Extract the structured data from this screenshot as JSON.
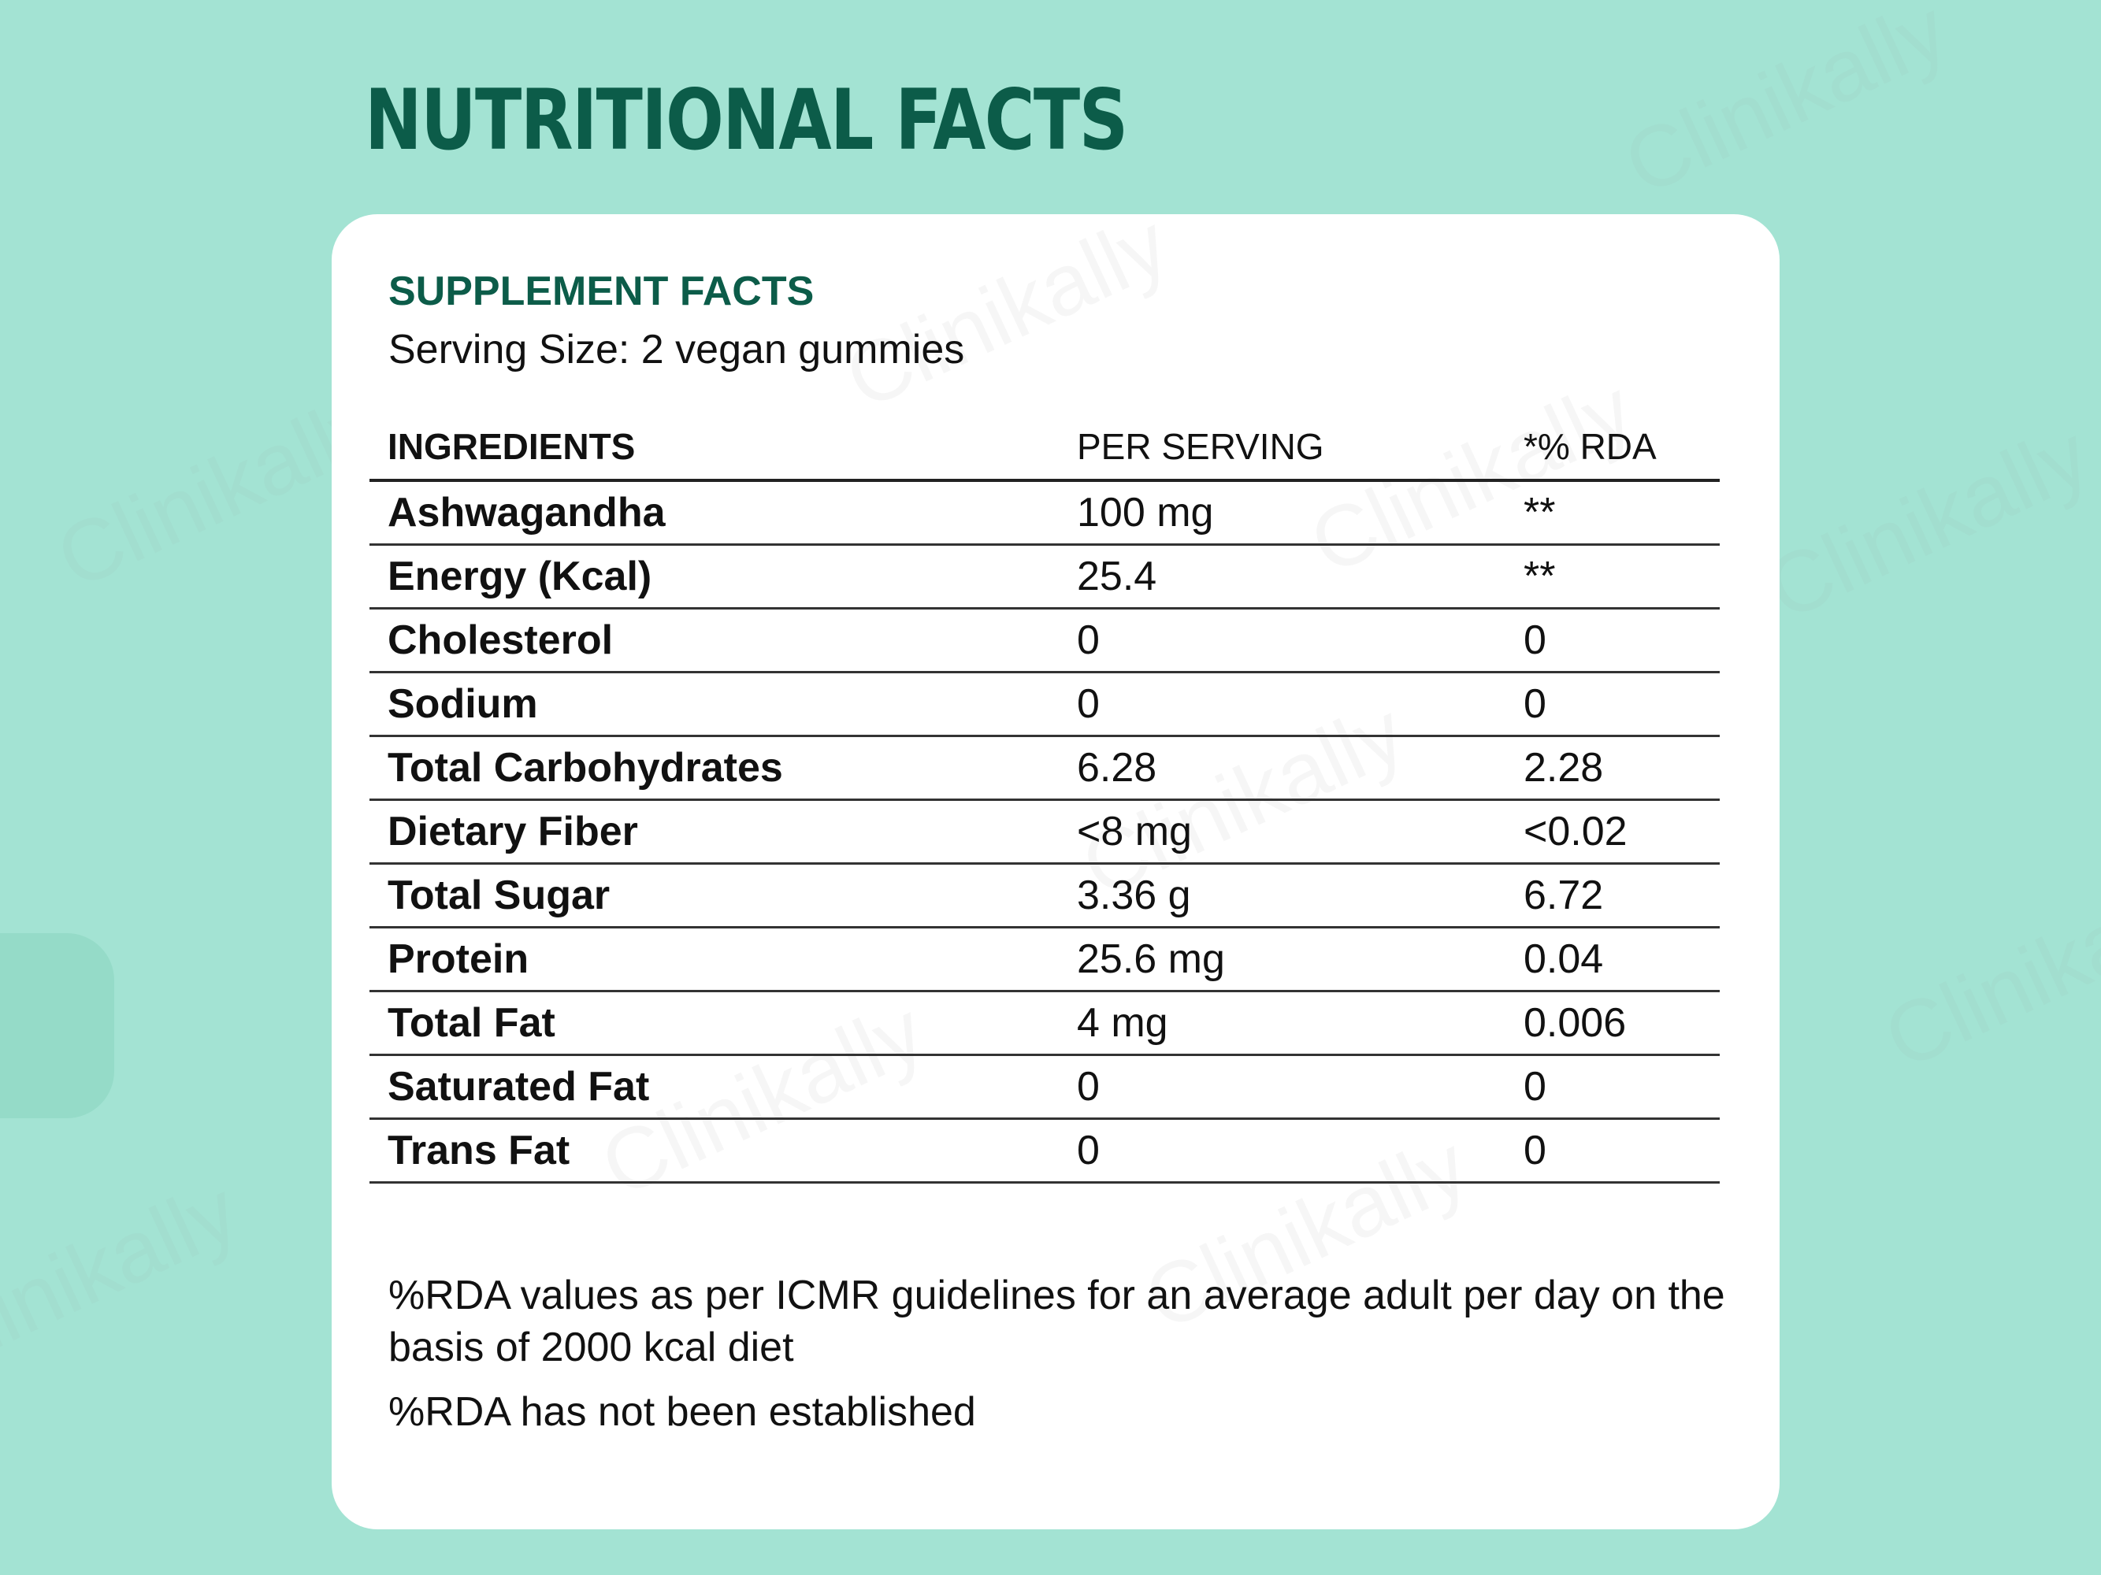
{
  "heading": "NUTRITIONAL FACTS",
  "watermark_text": "Clinikally",
  "card": {
    "title": "SUPPLEMENT FACTS",
    "serving_size": "Serving Size: 2 vegan gummies",
    "table": {
      "headers": {
        "ingredient": "INGREDIENTS",
        "per_serving": "PER SERVING",
        "rda": "*% RDA"
      },
      "rows": [
        {
          "ingredient": "Ashwagandha",
          "per_serving": "100 mg",
          "rda": "**"
        },
        {
          "ingredient": "Energy (Kcal)",
          "per_serving": "25.4",
          "rda": "**"
        },
        {
          "ingredient": "Cholesterol",
          "per_serving": "0",
          "rda": "0"
        },
        {
          "ingredient": "Sodium",
          "per_serving": "0",
          "rda": "0"
        },
        {
          "ingredient": "Total Carbohydrates",
          "per_serving": "6.28",
          "rda": "2.28"
        },
        {
          "ingredient": "Dietary Fiber",
          "per_serving": "<8 mg",
          "rda": "<0.02"
        },
        {
          "ingredient": "Total Sugar",
          "per_serving": "3.36 g",
          "rda": "6.72"
        },
        {
          "ingredient": "Protein",
          "per_serving": "25.6 mg",
          "rda": "0.04"
        },
        {
          "ingredient": "Total Fat",
          "per_serving": "4 mg",
          "rda": "0.006"
        },
        {
          "ingredient": "Saturated Fat",
          "per_serving": "0",
          "rda": "0"
        },
        {
          "ingredient": "Trans Fat",
          "per_serving": "0",
          "rda": "0"
        }
      ]
    },
    "note_1": "%RDA values as per ICMR guidelines for an average adult per day on the basis of 2000 kcal diet",
    "note_2": "%RDA has not been established"
  },
  "colors": {
    "background": "#a3e3d3",
    "heading": "#0c5c49",
    "card": "#ffffff",
    "text": "#111111"
  }
}
